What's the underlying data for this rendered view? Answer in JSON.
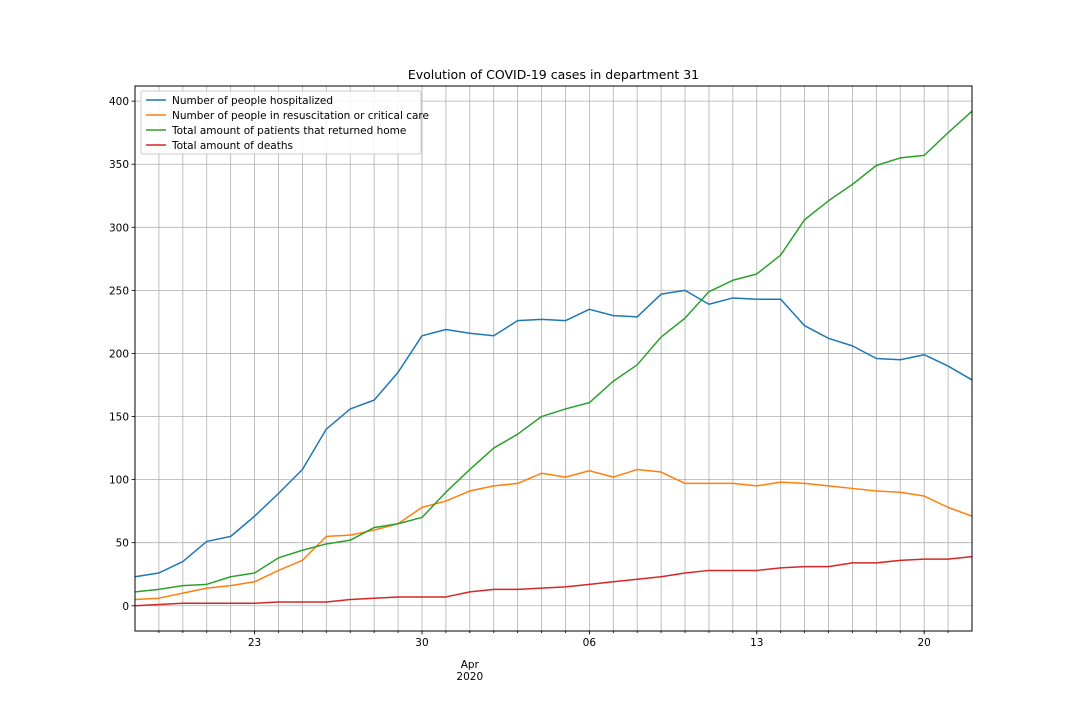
{
  "chart_data": {
    "type": "line",
    "title": "Evolution of COVID-19 cases in department 31",
    "xlabel": "",
    "ylabel": "",
    "grid": true,
    "legend_position": "upper-left",
    "x_start": "2020-03-18",
    "x": [
      "2020-03-18",
      "2020-03-19",
      "2020-03-20",
      "2020-03-21",
      "2020-03-22",
      "2020-03-23",
      "2020-03-24",
      "2020-03-25",
      "2020-03-26",
      "2020-03-27",
      "2020-03-28",
      "2020-03-29",
      "2020-03-30",
      "2020-03-31",
      "2020-04-01",
      "2020-04-02",
      "2020-04-03",
      "2020-04-04",
      "2020-04-05",
      "2020-04-06",
      "2020-04-07",
      "2020-04-08",
      "2020-04-09",
      "2020-04-10",
      "2020-04-11",
      "2020-04-12",
      "2020-04-13",
      "2020-04-14",
      "2020-04-15",
      "2020-04-16",
      "2020-04-17",
      "2020-04-18",
      "2020-04-19",
      "2020-04-20",
      "2020-04-21",
      "2020-04-22"
    ],
    "xlim": [
      "2020-03-18",
      "2020-04-22"
    ],
    "ylim": [
      -20,
      412
    ],
    "y_ticks": [
      0,
      50,
      100,
      150,
      200,
      250,
      300,
      350,
      400
    ],
    "x_major_ticks": [
      {
        "date": "2020-03-23",
        "label": "23"
      },
      {
        "date": "2020-03-30",
        "label": "30"
      },
      {
        "date": "2020-04-06",
        "label": "06"
      },
      {
        "date": "2020-04-13",
        "label": "13"
      },
      {
        "date": "2020-04-20",
        "label": "20"
      }
    ],
    "x_secondary_label": {
      "date": "2020-04-01",
      "line1": "Apr",
      "line2": "2020"
    },
    "series": [
      {
        "name": "Number of people hospitalized",
        "color": "#1f77b4",
        "values": [
          23,
          26,
          35,
          51,
          55,
          71,
          89,
          108,
          140,
          156,
          163,
          185,
          214,
          219,
          216,
          214,
          226,
          227,
          226,
          235,
          230,
          229,
          247,
          250,
          239,
          244,
          243,
          243,
          222,
          212,
          206,
          196,
          195,
          199,
          190,
          179
        ]
      },
      {
        "name": "Number of people in resuscitation or critical care",
        "color": "#ff7f0e",
        "values": [
          5,
          6,
          10,
          14,
          16,
          19,
          28,
          36,
          55,
          56,
          60,
          65,
          78,
          83,
          91,
          95,
          97,
          105,
          102,
          107,
          102,
          108,
          106,
          97,
          97,
          97,
          95,
          98,
          97,
          95,
          93,
          91,
          90,
          87,
          78,
          71
        ]
      },
      {
        "name": "Total amount of patients that returned home",
        "color": "#2ca02c",
        "values": [
          11,
          13,
          16,
          17,
          23,
          26,
          38,
          44,
          49,
          52,
          62,
          65,
          70,
          90,
          108,
          125,
          136,
          150,
          156,
          161,
          178,
          191,
          213,
          228,
          249,
          258,
          263,
          278,
          306,
          321,
          334,
          349,
          355,
          357,
          375,
          392
        ]
      },
      {
        "name": "Total amount of deaths",
        "color": "#d62728",
        "values": [
          0,
          1,
          2,
          2,
          2,
          2,
          3,
          3,
          3,
          5,
          6,
          7,
          7,
          7,
          11,
          13,
          13,
          14,
          15,
          17,
          19,
          21,
          23,
          26,
          28,
          28,
          28,
          30,
          31,
          31,
          34,
          34,
          36,
          37,
          37,
          39
        ]
      }
    ]
  }
}
